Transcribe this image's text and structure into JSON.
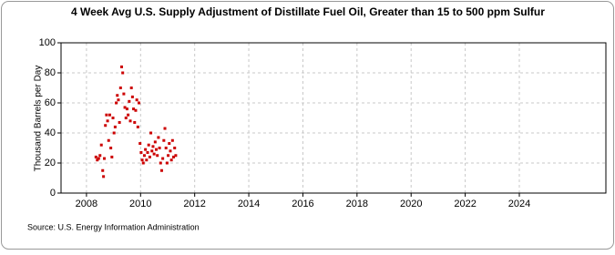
{
  "chart_data": {
    "type": "scatter",
    "title": "4 Week Avg U.S. Supply Adjustment of Distillate Fuel Oil, Greater than 15 to 500 ppm Sulfur",
    "y_label": "Thousand Barrels per Day",
    "source": "Source: U.S. Energy Information Administration",
    "color": "#cc0000",
    "xlim": [
      2007.06,
      2027.2
    ],
    "xticks": [
      2008,
      2010,
      2012,
      2014,
      2016,
      2018,
      2020,
      2022,
      2024
    ],
    "ylim": [
      0,
      100
    ],
    "yticks": [
      0,
      20,
      40,
      60,
      80,
      100
    ],
    "grid": true,
    "x": [
      2008.35,
      2008.4,
      2008.45,
      2008.5,
      2008.55,
      2008.6,
      2008.63,
      2008.66,
      2008.7,
      2008.74,
      2008.78,
      2008.82,
      2008.86,
      2008.9,
      2008.94,
      2008.98,
      2009.02,
      2009.06,
      2009.1,
      2009.14,
      2009.18,
      2009.22,
      2009.26,
      2009.3,
      2009.34,
      2009.38,
      2009.42,
      2009.46,
      2009.5,
      2009.54,
      2009.58,
      2009.62,
      2009.66,
      2009.7,
      2009.74,
      2009.78,
      2009.82,
      2009.86,
      2009.9,
      2009.94,
      2009.98,
      2010.02,
      2010.06,
      2010.1,
      2010.14,
      2010.18,
      2010.22,
      2010.26,
      2010.3,
      2010.34,
      2010.38,
      2010.42,
      2010.46,
      2010.5,
      2010.54,
      2010.58,
      2010.62,
      2010.66,
      2010.7,
      2010.74,
      2010.78,
      2010.82,
      2010.86,
      2010.9,
      2010.94,
      2010.98,
      2011.02,
      2011.06,
      2011.1,
      2011.14,
      2011.18,
      2011.22,
      2011.26,
      2011.3
    ],
    "values": [
      24,
      22,
      23,
      25,
      32,
      15,
      11,
      23,
      45,
      52,
      48,
      35,
      52,
      30,
      24,
      50,
      40,
      44,
      60,
      65,
      62,
      47,
      70,
      84,
      80,
      66,
      57,
      50,
      56,
      52,
      61,
      48,
      70,
      64,
      56,
      47,
      55,
      62,
      44,
      60,
      33,
      27,
      22,
      20,
      25,
      29,
      22,
      27,
      32,
      24,
      40,
      28,
      31,
      26,
      34,
      29,
      25,
      37,
      30,
      20,
      15,
      23,
      35,
      43,
      30,
      20,
      25,
      33,
      28,
      22,
      35,
      24,
      30,
      25
    ]
  }
}
